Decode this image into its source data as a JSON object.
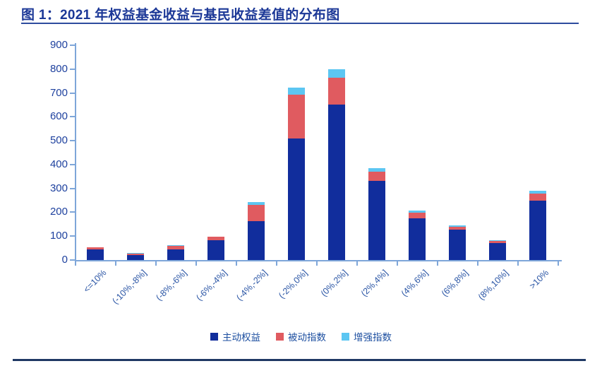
{
  "title": "图 1：2021 年权益基金收益与基民收益差值的分布图",
  "colors": {
    "title_text": "#1c3897",
    "title_underline": "#2e4c9e",
    "bottom_rule": "#1f3864",
    "axis": "#7ea6d9",
    "axis_tick_labels": "#1d409e",
    "series_active": "#112d9c",
    "series_passive": "#e05b60",
    "series_enhanced": "#5cc6f2"
  },
  "chart_data": {
    "type": "bar",
    "stacked": true,
    "title": "2021 年权益基金收益与基民收益差值的分布图",
    "categories": [
      "<=10%",
      "(-10%,-8%]",
      "(-8%,-6%]",
      "(-6%,-4%]",
      "(-4%,-2%]",
      "(-2%,0%]",
      "(0%,2%]",
      "(2%,4%]",
      "(4%,6%]",
      "(6%,8%]",
      "(8%,10%]",
      ">10%"
    ],
    "series": [
      {
        "name": "主动权益",
        "color": "#112d9c",
        "values": [
          45,
          22,
          43,
          82,
          164,
          508,
          652,
          331,
          176,
          126,
          70,
          248
        ]
      },
      {
        "name": "被动指数",
        "color": "#e05b60",
        "values": [
          7,
          6,
          17,
          15,
          67,
          184,
          112,
          38,
          22,
          12,
          10,
          30
        ]
      },
      {
        "name": "增强指数",
        "color": "#5cc6f2",
        "values": [
          0,
          2,
          3,
          2,
          12,
          31,
          36,
          15,
          8,
          6,
          2,
          13
        ]
      }
    ],
    "totals": [
      52,
      30,
      63,
      99,
      243,
      723,
      800,
      384,
      206,
      144,
      82,
      291
    ],
    "xlabel": "",
    "ylabel": "",
    "ylim": [
      0,
      900
    ],
    "ytick_step": 100,
    "grid": false,
    "legend": [
      "主动权益",
      "被动指数",
      "增强指数"
    ],
    "legend_position": "bottom"
  }
}
